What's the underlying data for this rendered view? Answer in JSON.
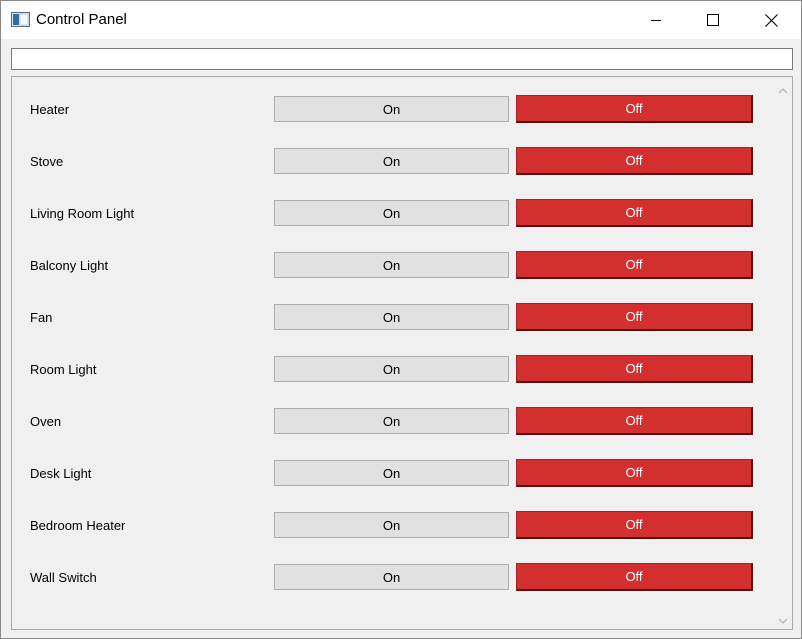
{
  "window": {
    "title": "Control Panel"
  },
  "top_field": {
    "value": ""
  },
  "devices": [
    {
      "label": "Heater",
      "on_label": "On",
      "off_label": "Off"
    },
    {
      "label": "Stove",
      "on_label": "On",
      "off_label": "Off"
    },
    {
      "label": "Living Room Light",
      "on_label": "On",
      "off_label": "Off"
    },
    {
      "label": "Balcony Light",
      "on_label": "On",
      "off_label": "Off"
    },
    {
      "label": "Fan",
      "on_label": "On",
      "off_label": "Off"
    },
    {
      "label": "Room Light",
      "on_label": "On",
      "off_label": "Off"
    },
    {
      "label": "Oven",
      "on_label": "On",
      "off_label": "Off"
    },
    {
      "label": "Desk Light",
      "on_label": "On",
      "off_label": "Off"
    },
    {
      "label": "Bedroom Heater",
      "on_label": "On",
      "off_label": "Off"
    },
    {
      "label": "Wall Switch",
      "on_label": "On",
      "off_label": "Off"
    }
  ],
  "colors": {
    "off_button": "#d32f2f",
    "on_button": "#e1e1e1"
  }
}
